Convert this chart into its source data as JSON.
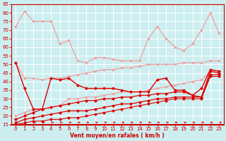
{
  "x": [
    0,
    1,
    2,
    3,
    4,
    5,
    6,
    7,
    8,
    9,
    10,
    11,
    12,
    13,
    14,
    15,
    16,
    17,
    18,
    19,
    20,
    21,
    22,
    23
  ],
  "series": [
    {
      "values": [
        72,
        81,
        75,
        75,
        75,
        62,
        64,
        52,
        51,
        54,
        54,
        53,
        52,
        52,
        52,
        65,
        72,
        65,
        60,
        58,
        62,
        70,
        80,
        68
      ],
      "color": "#f0a0a0",
      "marker": "o",
      "markersize": 2.0,
      "linewidth": 0.9,
      "zorder": 2
    },
    {
      "values": [
        51,
        42,
        42,
        41,
        42,
        42,
        43,
        44,
        45,
        46,
        47,
        47,
        48,
        48,
        49,
        50,
        50,
        50,
        50,
        51,
        51,
        51,
        52,
        52
      ],
      "color": "#f0a0a0",
      "marker": "o",
      "markersize": 2.0,
      "linewidth": 0.9,
      "zorder": 2
    },
    {
      "values": [
        20,
        22,
        24,
        24,
        25,
        26,
        30,
        30,
        31,
        31,
        32,
        33,
        34,
        34,
        34,
        35,
        36,
        37,
        38,
        39,
        40,
        41,
        46,
        46
      ],
      "color": "#f0a0a0",
      "marker": "o",
      "markersize": 2.0,
      "linewidth": 0.9,
      "zorder": 2
    },
    {
      "values": [
        51,
        36,
        24,
        24,
        42,
        41,
        42,
        38,
        36,
        36,
        36,
        36,
        35,
        34,
        34,
        34,
        41,
        42,
        35,
        35,
        32,
        36,
        47,
        46
      ],
      "color": "#dd0000",
      "marker": "D",
      "markersize": 2.0,
      "linewidth": 1.0,
      "zorder": 3
    },
    {
      "values": [
        18,
        20,
        22,
        24,
        25,
        26,
        27,
        28,
        29,
        29,
        30,
        30,
        31,
        31,
        32,
        32,
        33,
        33,
        34,
        34,
        32,
        31,
        46,
        45
      ],
      "color": "#dd0000",
      "marker": "D",
      "markersize": 2.0,
      "linewidth": 0.9,
      "zorder": 2
    },
    {
      "values": [
        16,
        18,
        19,
        20,
        21,
        22,
        23,
        23,
        23,
        24,
        25,
        26,
        27,
        27,
        28,
        29,
        30,
        30,
        31,
        31,
        31,
        31,
        44,
        44
      ],
      "color": "#dd0000",
      "marker": "D",
      "markersize": 2.0,
      "linewidth": 0.9,
      "zorder": 2
    },
    {
      "values": [
        15,
        16,
        17,
        17,
        18,
        18,
        19,
        19,
        20,
        21,
        22,
        23,
        24,
        25,
        26,
        27,
        28,
        29,
        30,
        30,
        30,
        30,
        43,
        43
      ],
      "color": "#dd0000",
      "marker": "D",
      "markersize": 2.0,
      "linewidth": 0.8,
      "zorder": 2
    }
  ],
  "xlabel": "Vent moyen/en rafales ( km/h )",
  "ylim": [
    15,
    85
  ],
  "xlim": [
    -0.5,
    23.5
  ],
  "yticks": [
    15,
    20,
    25,
    30,
    35,
    40,
    45,
    50,
    55,
    60,
    65,
    70,
    75,
    80,
    85
  ],
  "xticks": [
    0,
    1,
    2,
    3,
    4,
    5,
    6,
    7,
    8,
    9,
    10,
    11,
    12,
    13,
    14,
    15,
    16,
    17,
    18,
    19,
    20,
    21,
    22,
    23
  ],
  "bg_color": "#cceef0",
  "grid_color": "#ffffff",
  "tick_color": "#cc0000",
  "xlabel_color": "#cc0000",
  "axis_color": "#cc0000",
  "arrow_color": "#cc0000"
}
